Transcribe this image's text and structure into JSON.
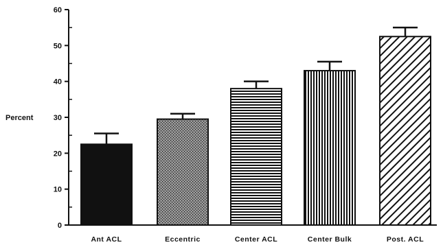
{
  "chart_data": {
    "type": "bar",
    "title": "",
    "xlabel": "",
    "ylabel": "Percent",
    "ylim": [
      0,
      60
    ],
    "yticks": [
      "0",
      "10",
      "20",
      "30",
      "40",
      "50",
      "60"
    ],
    "categories": [
      "Ant ACL",
      "Eccentric",
      "Center ACL",
      "Center Bulk",
      "Post. ACL"
    ],
    "values": [
      22.5,
      29.5,
      38,
      43,
      52.5
    ],
    "errors": [
      3,
      1.5,
      2,
      2.5,
      2.5
    ],
    "fills": [
      "solid",
      "stipple",
      "horizontal-lines",
      "vertical-lines",
      "diagonal-lines"
    ],
    "grid": false,
    "legend": "none"
  }
}
